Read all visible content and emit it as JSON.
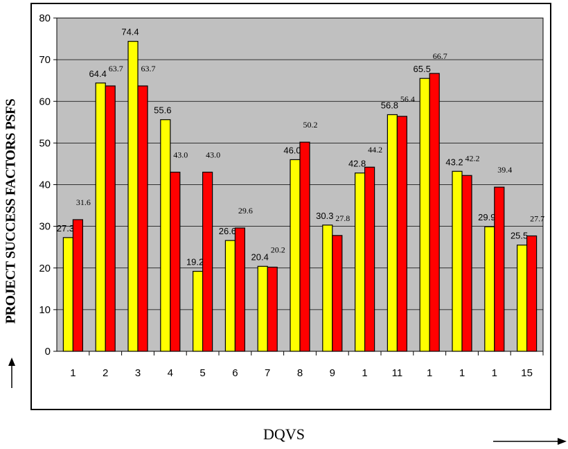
{
  "chart_data": {
    "type": "bar",
    "title": "",
    "xlabel": "DQVS",
    "ylabel": "PROJECT SUCCESS FACTORS PSFS",
    "categories": [
      "1",
      "2",
      "3",
      "4",
      "5",
      "6",
      "7",
      "8",
      "9",
      "1",
      "11",
      "1",
      "1",
      "1",
      "15"
    ],
    "ylim": [
      0,
      80
    ],
    "yticks": [
      0,
      10,
      20,
      30,
      40,
      50,
      60,
      70,
      80
    ],
    "grid": true,
    "legend": "none",
    "series": [
      {
        "color": "#ffff00",
        "values": [
          27.3,
          64.4,
          74.4,
          55.6,
          19.2,
          26.6,
          20.4,
          46.0,
          30.3,
          42.8,
          56.8,
          65.5,
          43.2,
          29.9,
          25.5
        ],
        "labels": [
          "27.3",
          "64.4",
          "74.4",
          "55.6",
          "19.2",
          "26.6",
          "20.4",
          "46.0",
          "30.3",
          "42.8",
          "56.8",
          "65.5",
          "43.2",
          "29.9",
          "25.5"
        ]
      },
      {
        "color": "#ff0000",
        "values": [
          31.6,
          63.7,
          63.7,
          43.0,
          43.0,
          29.6,
          20.2,
          50.2,
          27.8,
          44.2,
          56.4,
          66.7,
          42.2,
          39.4,
          27.7
        ],
        "labels": [
          "31.6",
          "63.7",
          "63.7",
          "43.0",
          "43.0",
          "29.6",
          "20.2",
          "50.2",
          "27.8",
          "44.2",
          "56.4",
          "66.7",
          "42.2",
          "39.4",
          "27.7"
        ]
      }
    ],
    "plot_background": "#c0c0c0",
    "arrows": [
      "up-arrow",
      "right-arrow"
    ]
  }
}
